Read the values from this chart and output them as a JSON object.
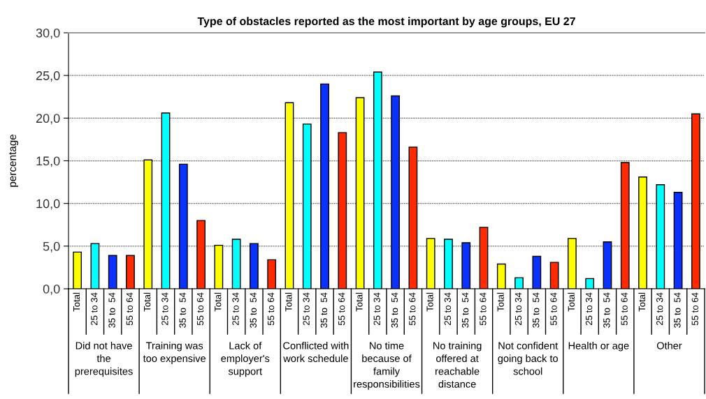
{
  "chart_data": {
    "type": "bar",
    "title": "Type of obstacles reported as the most important by age groups, EU 27",
    "ylabel": "percentage",
    "categories": [
      "Did not have the prerequisites",
      "Training was too expensive",
      "Lack of employer's support",
      "Conflicted with work schedule",
      "No time because of family responsibilities",
      "No training offered at reachable distance",
      "Not confident going back to school",
      "Health or age",
      "Other"
    ],
    "series": [
      {
        "name": "Total",
        "color": "#ffff00",
        "values": [
          4.3,
          15.1,
          5.1,
          21.8,
          22.4,
          5.9,
          2.9,
          5.9,
          13.1
        ]
      },
      {
        "name": "25 to 34",
        "color": "#00ffff",
        "values": [
          5.3,
          20.6,
          5.8,
          19.3,
          25.4,
          5.8,
          1.3,
          1.2,
          12.2
        ]
      },
      {
        "name": "35 to  54",
        "color": "#0a32ff",
        "values": [
          3.9,
          14.6,
          5.3,
          24.0,
          22.6,
          5.4,
          3.8,
          5.5,
          11.3
        ]
      },
      {
        "name": "55 to 64",
        "color": "#ff2a00",
        "values": [
          3.9,
          8.0,
          3.4,
          18.3,
          16.6,
          7.2,
          3.1,
          14.8,
          20.5
        ]
      }
    ],
    "ylim": [
      0,
      30
    ],
    "yticks": [
      {
        "value": 0,
        "label": "0,0"
      },
      {
        "value": 5,
        "label": "5,0"
      },
      {
        "value": 10,
        "label": "10,0"
      },
      {
        "value": 15,
        "label": "15,0"
      },
      {
        "value": 20,
        "label": "20,0"
      },
      {
        "value": 25,
        "label": "25,0"
      },
      {
        "value": 30,
        "label": "30,0"
      }
    ],
    "grid": "y",
    "legend": false
  }
}
